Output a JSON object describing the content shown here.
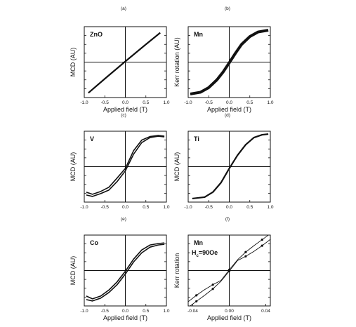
{
  "chart_data": [
    {
      "id": "a",
      "type": "line",
      "letter": "(a)",
      "label": "ZnO",
      "xlabel": "Applied field (T)",
      "ylabel": "MCD (AU)",
      "xlim": [
        -1.0,
        1.0
      ],
      "ylim": [
        -1.0,
        1.0
      ],
      "xticks": [
        "-1.0",
        "-0.5",
        "0.0",
        "0.5",
        "1.0"
      ],
      "show_xticks": true,
      "series": [
        {
          "x": [
            -0.9,
            -0.5,
            0.0,
            0.5,
            0.85
          ],
          "y": [
            -0.87,
            -0.47,
            0.02,
            0.5,
            0.83
          ]
        }
      ]
    },
    {
      "id": "b",
      "type": "line",
      "letter": "(b)",
      "label": "Mn",
      "xlabel": "Applied field (T)",
      "ylabel": "Kerr rotation (AU)",
      "xlim": [
        -1.0,
        1.0
      ],
      "ylim": [
        -1.0,
        1.0
      ],
      "xticks": [
        "-1.0",
        "-0.5",
        "0.0",
        "0.5",
        "1.0"
      ],
      "show_xticks": true,
      "series": [
        {
          "x": [
            -0.95,
            -0.7,
            -0.5,
            -0.3,
            -0.15,
            0.0,
            0.15,
            0.3,
            0.5,
            0.7,
            0.95
          ],
          "y": [
            -0.9,
            -0.85,
            -0.72,
            -0.5,
            -0.28,
            -0.02,
            0.25,
            0.5,
            0.72,
            0.85,
            0.9
          ]
        }
      ]
    },
    {
      "id": "c",
      "type": "line",
      "letter": "(c)",
      "label": "V",
      "xlabel": "",
      "ylabel": "MCD (AU)",
      "xlim": [
        -1.0,
        1.0
      ],
      "ylim": [
        -1.0,
        1.0
      ],
      "xticks": [
        "-1.0",
        "-0.5",
        "0.0",
        "0.5",
        "1.0"
      ],
      "show_xticks": true,
      "series": [
        {
          "x": [
            -0.95,
            -0.8,
            -0.6,
            -0.4,
            -0.2,
            0.0,
            0.2,
            0.4,
            0.6,
            0.8,
            0.95
          ],
          "y": [
            -0.72,
            -0.78,
            -0.7,
            -0.58,
            -0.32,
            -0.05,
            0.45,
            0.75,
            0.85,
            0.88,
            0.86
          ]
        },
        {
          "x": [
            -0.95,
            -0.8,
            -0.6,
            -0.4,
            -0.2,
            0.0,
            0.2,
            0.4,
            0.6,
            0.8,
            0.95
          ],
          "y": [
            -0.8,
            -0.84,
            -0.76,
            -0.66,
            -0.42,
            -0.12,
            0.35,
            0.68,
            0.82,
            0.86,
            0.84
          ]
        }
      ]
    },
    {
      "id": "d",
      "type": "line",
      "letter": "(d)",
      "label": "Ti",
      "xlabel": "",
      "ylabel": "MCD (AU)",
      "xlim": [
        -1.0,
        1.0
      ],
      "ylim": [
        -1.0,
        1.0
      ],
      "xticks": [
        "-1.0",
        "-0.5",
        "0.0",
        "0.5",
        "1.0"
      ],
      "show_xticks": true,
      "series": [
        {
          "x": [
            -0.9,
            -0.6,
            -0.4,
            -0.2,
            0.0,
            0.2,
            0.4,
            0.6,
            0.8,
            0.95
          ],
          "y": [
            -0.9,
            -0.86,
            -0.72,
            -0.45,
            -0.05,
            0.32,
            0.62,
            0.82,
            0.9,
            0.92
          ]
        }
      ]
    },
    {
      "id": "e",
      "type": "line",
      "letter": "(e)",
      "label": "Co",
      "xlabel": "Applied field (T)",
      "ylabel": "MCD (AU)",
      "xlim": [
        -1.0,
        1.0
      ],
      "ylim": [
        -1.0,
        1.0
      ],
      "xticks": [
        "-1.0",
        "-0.5",
        "0.0",
        "0.5",
        "1.0"
      ],
      "show_xticks": true,
      "series": [
        {
          "x": [
            -0.95,
            -0.8,
            -0.6,
            -0.4,
            -0.2,
            0.0,
            0.2,
            0.4,
            0.6,
            0.8,
            0.95
          ],
          "y": [
            -0.72,
            -0.8,
            -0.72,
            -0.55,
            -0.32,
            -0.02,
            0.32,
            0.58,
            0.72,
            0.76,
            0.78
          ]
        },
        {
          "x": [
            -0.95,
            -0.8,
            -0.6,
            -0.4,
            -0.2,
            0.0,
            0.2,
            0.4,
            0.6,
            0.8,
            0.95
          ],
          "y": [
            -0.82,
            -0.86,
            -0.78,
            -0.62,
            -0.4,
            -0.1,
            0.24,
            0.5,
            0.66,
            0.72,
            0.74
          ]
        }
      ]
    },
    {
      "id": "f",
      "type": "scatter",
      "letter": "(f)",
      "label": "Mn",
      "annotation_main": "H",
      "annotation_sub": "c",
      "annotation_rest": "=90Oe",
      "xlabel": "Applied field (T)",
      "ylabel": "Kerr rotation",
      "xlim": [
        -0.045,
        0.045
      ],
      "ylim": [
        -1.0,
        1.0
      ],
      "xticks": [
        "-0.04",
        "0.00",
        "0.04"
      ],
      "xtick_values": [
        -0.04,
        0.0,
        0.04
      ],
      "show_xticks": true,
      "series": [
        {
          "x": [
            -0.045,
            -0.036,
            -0.027,
            -0.018,
            -0.009,
            0.0,
            0.009,
            0.018,
            0.027,
            0.036,
            0.045
          ],
          "y": [
            -0.88,
            -0.7,
            -0.54,
            -0.4,
            -0.28,
            0.02,
            0.3,
            0.52,
            0.7,
            0.87,
            1.04
          ]
        },
        {
          "x": [
            -0.045,
            -0.036,
            -0.027,
            -0.018,
            -0.009,
            0.0,
            0.009,
            0.018,
            0.027,
            0.036,
            0.045
          ],
          "y": [
            -1.04,
            -0.87,
            -0.7,
            -0.52,
            -0.3,
            -0.02,
            0.28,
            0.4,
            0.54,
            0.7,
            0.88
          ]
        }
      ]
    }
  ]
}
